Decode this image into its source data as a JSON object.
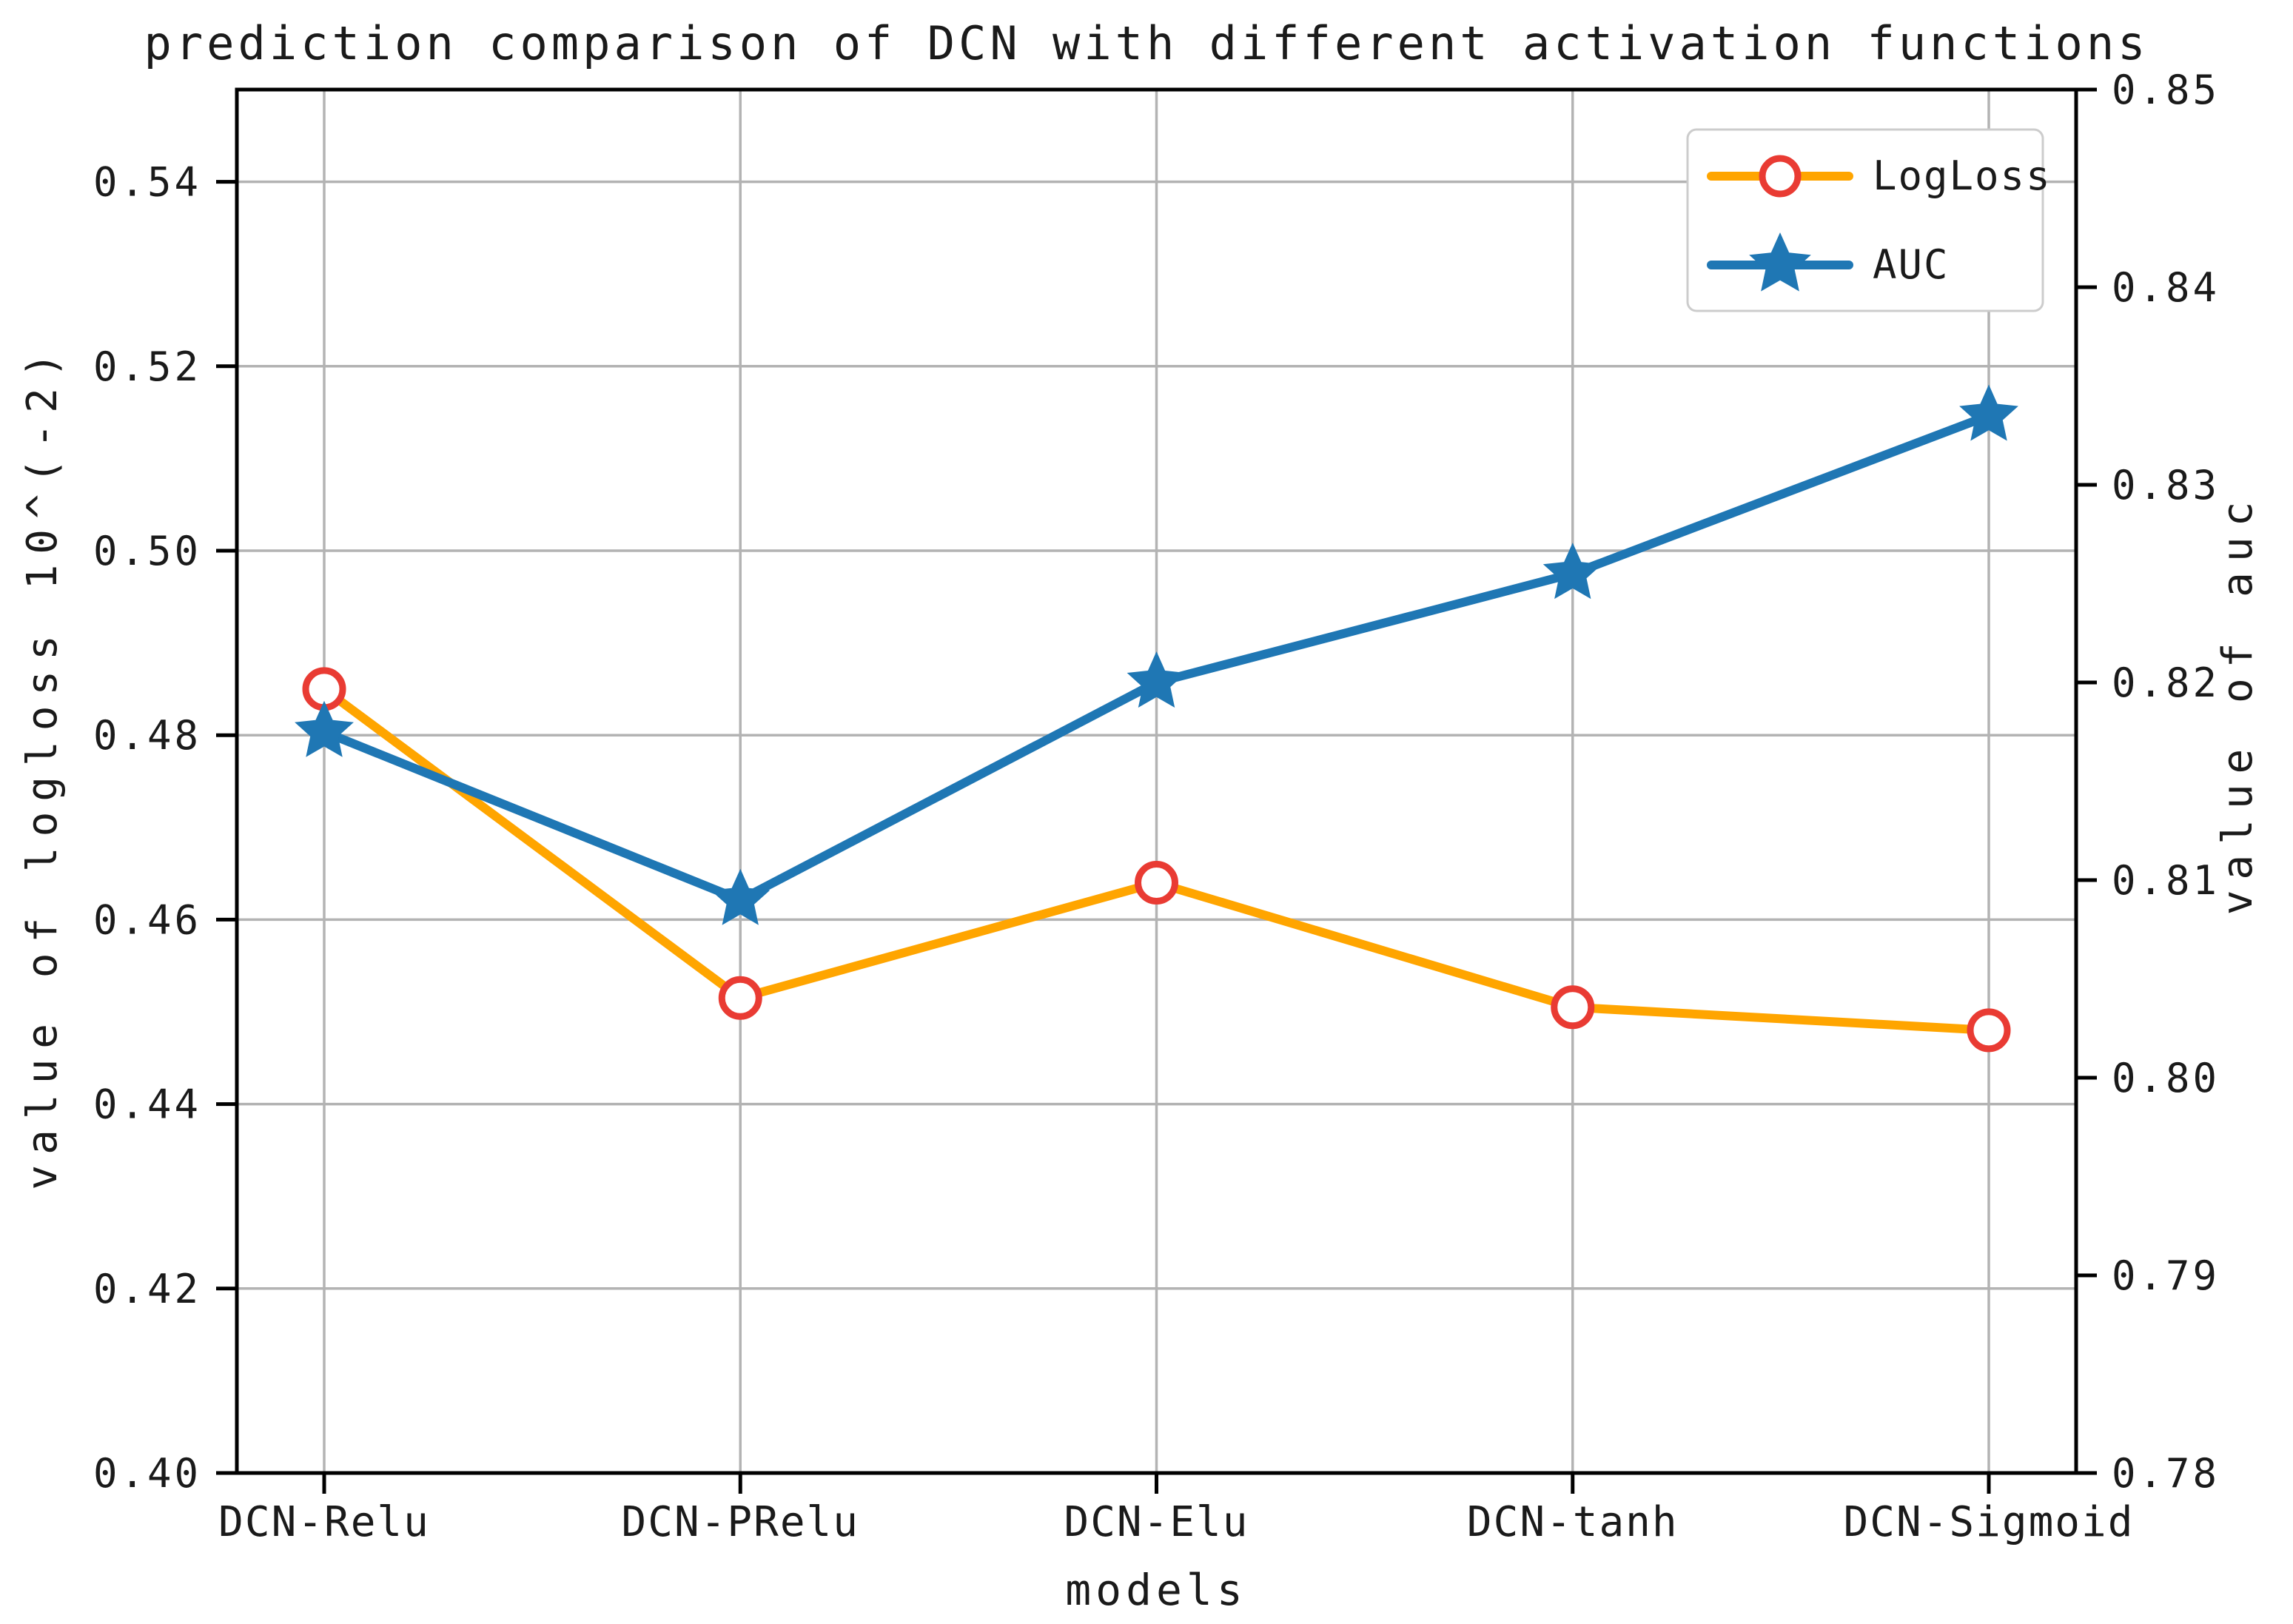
{
  "chart_data": {
    "type": "line",
    "title": "prediction comparison of DCN with different activation functions",
    "xlabel": "models",
    "categories": [
      "DCN-Relu",
      "DCN-PRelu",
      "DCN-Elu",
      "DCN-tanh",
      "DCN-Sigmoid"
    ],
    "series": [
      {
        "name": "LogLoss",
        "axis": "left",
        "values": [
          0.485,
          0.4515,
          0.464,
          0.4505,
          0.448
        ],
        "line_color": "#FFA500",
        "marker": "circle",
        "marker_edge_color": "#E93B33",
        "marker_face_color": "#FFFFFF"
      },
      {
        "name": "AUC",
        "axis": "right",
        "values": [
          0.8175,
          0.809,
          0.82,
          0.8255,
          0.8335
        ],
        "line_color": "#1F77B4",
        "marker": "star",
        "marker_face_color": "#1F77B4"
      }
    ],
    "left_axis": {
      "label": "value of logloss 10^(-2)",
      "min": 0.4,
      "max": 0.55,
      "ticks": [
        "0.40",
        "0.42",
        "0.44",
        "0.46",
        "0.48",
        "0.50",
        "0.52",
        "0.54"
      ]
    },
    "right_axis": {
      "label": "value of auc",
      "min": 0.78,
      "max": 0.85,
      "ticks": [
        "0.78",
        "0.79",
        "0.80",
        "0.81",
        "0.82",
        "0.83",
        "0.84",
        "0.85"
      ]
    },
    "legend": {
      "position": "upper right",
      "entries": [
        "LogLoss",
        "AUC"
      ]
    },
    "grid": true,
    "colors": {
      "background": "#FFFFFF",
      "grid": "#B3B3B3",
      "spine": "#000000",
      "text": "#1A1A1A",
      "legend_border": "#CCCCCC"
    }
  }
}
